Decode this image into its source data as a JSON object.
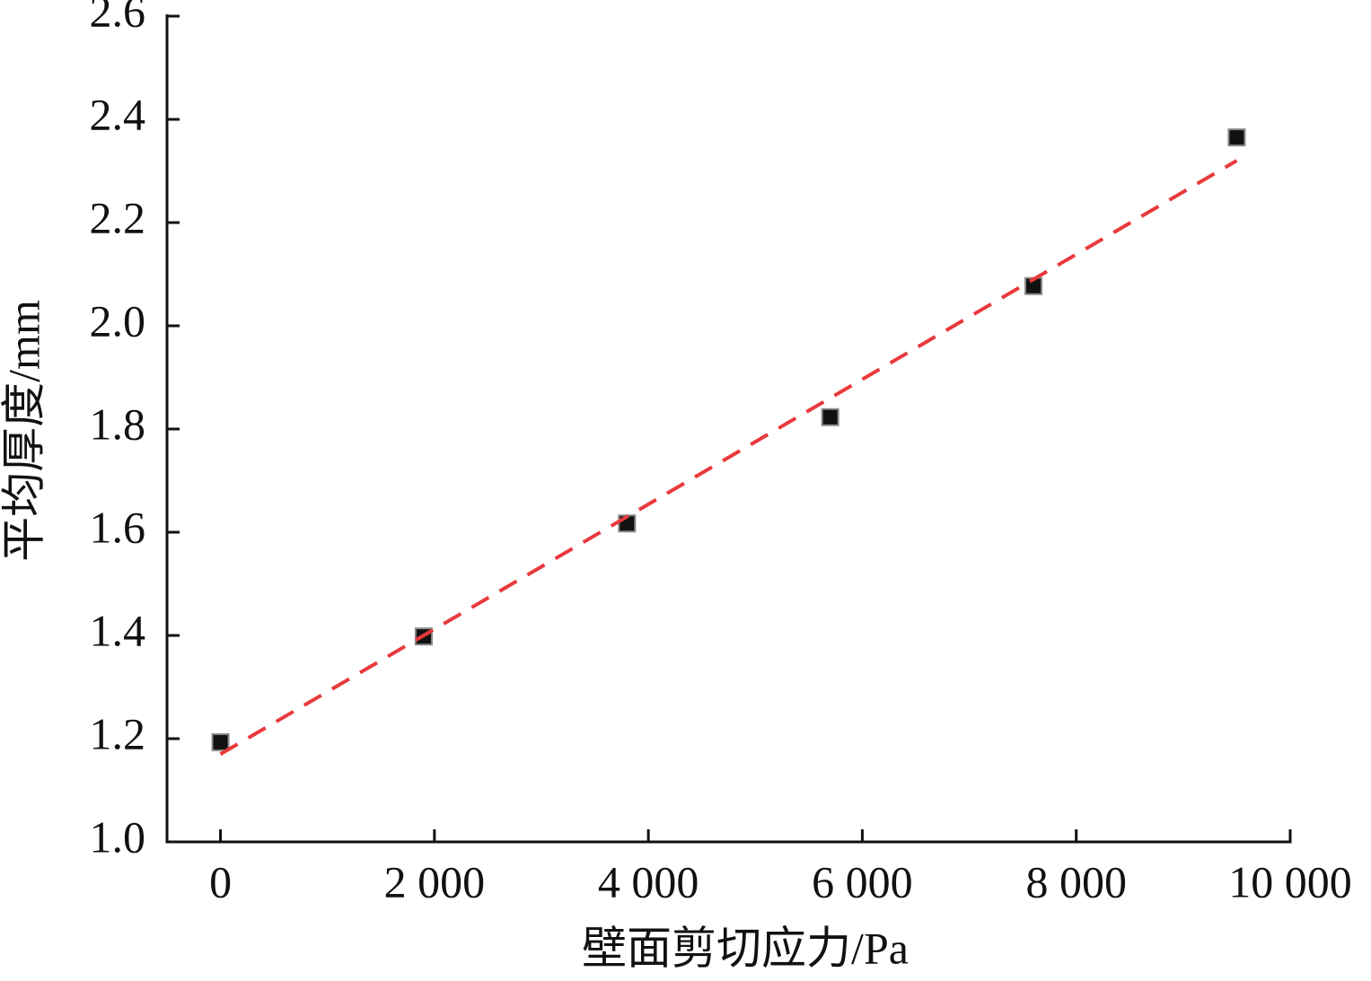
{
  "chart_data": {
    "type": "scatter",
    "x_label": "壁面剪切应力/Pa",
    "y_label": "平均厚度/mm",
    "xlim": [
      -500,
      10000
    ],
    "ylim": [
      1.0,
      2.6
    ],
    "xticks": [
      0,
      {
        "value": 2000,
        "label": "2 000"
      },
      {
        "value": 4000,
        "label": "4 000"
      },
      {
        "value": 6000,
        "label": "6 000"
      },
      {
        "value": 8000,
        "label": "8 000"
      },
      {
        "value": 10000,
        "label": "10 000"
      }
    ],
    "yticks": [
      {
        "value": 1.0,
        "label": "1.0"
      },
      {
        "value": 1.2,
        "label": "1.2"
      },
      {
        "value": 1.4,
        "label": "1.4"
      },
      {
        "value": 1.6,
        "label": "1.6"
      },
      {
        "value": 1.8,
        "label": "1.8"
      },
      {
        "value": 2.0,
        "label": "2.0"
      },
      {
        "value": 2.2,
        "label": "2.2"
      },
      {
        "value": 2.4,
        "label": "2.4"
      },
      {
        "value": 2.6,
        "label": "2.6"
      }
    ],
    "series": [
      {
        "color": "#111111",
        "marker": "square",
        "x": [
          0,
          1900,
          3800,
          5700,
          7600,
          9500
        ],
        "values": [
          1.193,
          1.398,
          1.617,
          1.823,
          2.077,
          2.365
        ]
      },
      {
        "color": "#e8393c",
        "line": "dashed",
        "x": [
          0,
          9500
        ],
        "values": [
          1.17,
          2.32
        ]
      }
    ]
  }
}
